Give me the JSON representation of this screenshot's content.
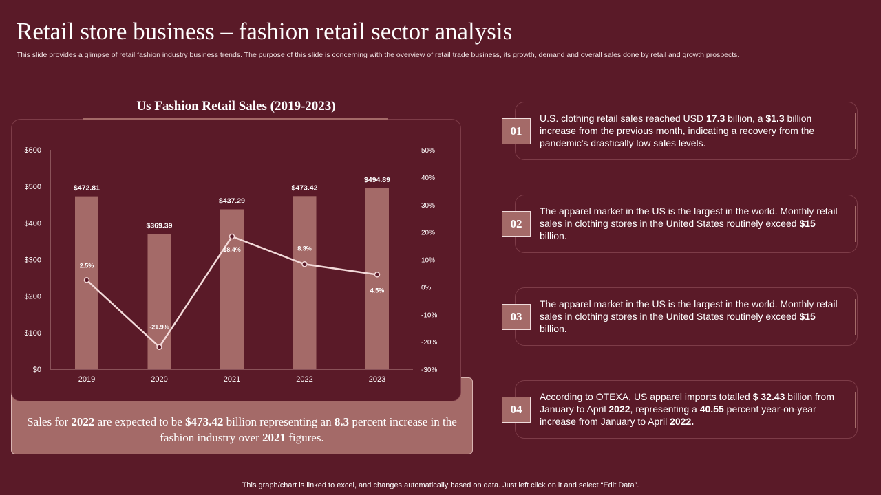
{
  "header": {
    "title": "Retail store business – fashion retail sector analysis",
    "subtitle": "This slide provides a glimpse of retail fashion industry business trends. The purpose of this slide is concerning with the overview of retail trade business, its growth, demand and overall sales done by retail and growth prospects."
  },
  "chart_data": {
    "type": "bar+line",
    "title": "Us Fashion Retail Sales (2019-2023)",
    "categories": [
      "2019",
      "2020",
      "2021",
      "2022",
      "2023"
    ],
    "series": [
      {
        "name": "Sales ($B)",
        "type": "bar",
        "values": [
          472.81,
          369.39,
          437.29,
          473.42,
          494.89
        ],
        "labels": [
          "$472.81",
          "$369.39",
          "$437.29",
          "$473.42",
          "$494.89"
        ]
      },
      {
        "name": "Growth (%)",
        "type": "line",
        "axis": "right",
        "values": [
          2.5,
          -21.9,
          18.4,
          8.3,
          4.5
        ],
        "labels": [
          "2.5%",
          "-21.9%",
          "18.4%",
          "8.3%",
          "4.5%"
        ]
      }
    ],
    "y_left": {
      "range": [
        0,
        600
      ],
      "ticks": [
        "$0",
        "$100",
        "$200",
        "$300",
        "$400",
        "$500",
        "$600"
      ]
    },
    "y_right": {
      "range": [
        -30,
        50
      ],
      "ticks": [
        "-30%",
        "-20%",
        "-10%",
        "0%",
        "10%",
        "20%",
        "30%",
        "40%",
        "50%"
      ]
    },
    "colors": {
      "bar": "#a46a68",
      "line": "#f3dada"
    }
  },
  "summary": [
    {
      "t": "Sales for "
    },
    {
      "t": "2022",
      "b": true
    },
    {
      "t": " are expected to be "
    },
    {
      "t": "$473.42",
      "b": true
    },
    {
      "t": " billion representing an "
    },
    {
      "t": "8.3",
      "b": true
    },
    {
      "t": " percent increase in the fashion industry over "
    },
    {
      "t": "2021",
      "b": true
    },
    {
      "t": " figures."
    }
  ],
  "cards": [
    {
      "num": "01",
      "parts": [
        {
          "t": "U.S. clothing retail sales reached USD "
        },
        {
          "t": "17.3",
          "b": true
        },
        {
          "t": " billion,  a "
        },
        {
          "t": "$1.3",
          "b": true
        },
        {
          "t": " billion increase from the previous month, indicating a recovery from the pandemic's drastically low sales levels."
        }
      ]
    },
    {
      "num": "02",
      "parts": [
        {
          "t": "The apparel market in the US is the largest in the world. Monthly retail sales in clothing stores in the United States routinely exceed "
        },
        {
          "t": "$15",
          "b": true
        },
        {
          "t": " billion."
        }
      ]
    },
    {
      "num": "03",
      "parts": [
        {
          "t": "The apparel market in the US is the largest in the world. Monthly retail sales in clothing stores in the United States routinely exceed "
        },
        {
          "t": "$15",
          "b": true
        },
        {
          "t": " billion."
        }
      ]
    },
    {
      "num": "04",
      "parts": [
        {
          "t": "According to OTEXA, US apparel imports totalled "
        },
        {
          "t": "$ 32.43",
          "b": true
        },
        {
          "t": " billion from January to April "
        },
        {
          "t": "2022",
          "b": true
        },
        {
          "t": ", representing a "
        },
        {
          "t": "40.55",
          "b": true
        },
        {
          "t": " percent year-on-year increase from January to April "
        },
        {
          "t": "2022.",
          "b": true
        }
      ]
    }
  ],
  "footer": "This graph/chart is linked to excel, and changes automatically based on data. Just left click on it and select “Edit Data”."
}
